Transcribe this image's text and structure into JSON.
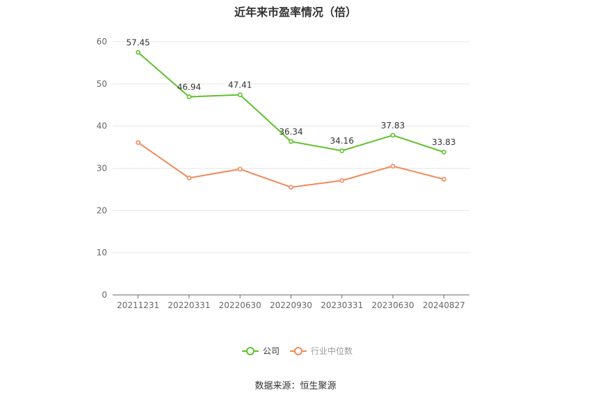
{
  "chart_data": {
    "type": "line",
    "title": "近年来市盈率情况（倍）",
    "categories": [
      "20211231",
      "20220331",
      "20220630",
      "20220930",
      "20230331",
      "20230630",
      "20240827"
    ],
    "series": [
      {
        "name": "公司",
        "values": [
          57.45,
          46.94,
          47.41,
          36.34,
          34.16,
          37.83,
          33.83
        ],
        "color": "#5cc12a",
        "labels": [
          "57.45",
          "46.94",
          "47.41",
          "36.34",
          "34.16",
          "37.83",
          "33.83"
        ]
      },
      {
        "name": "行业中位数",
        "values": [
          36.1,
          27.7,
          29.8,
          25.5,
          27.1,
          30.5,
          27.4
        ],
        "color": "#f0895a"
      }
    ],
    "ylim": [
      0,
      60
    ],
    "yticks": [
      "0",
      "10",
      "20",
      "30",
      "40",
      "50",
      "60"
    ],
    "grid": true,
    "legend_position": "bottom-center"
  },
  "source_note": "数据来源：恒生聚源"
}
